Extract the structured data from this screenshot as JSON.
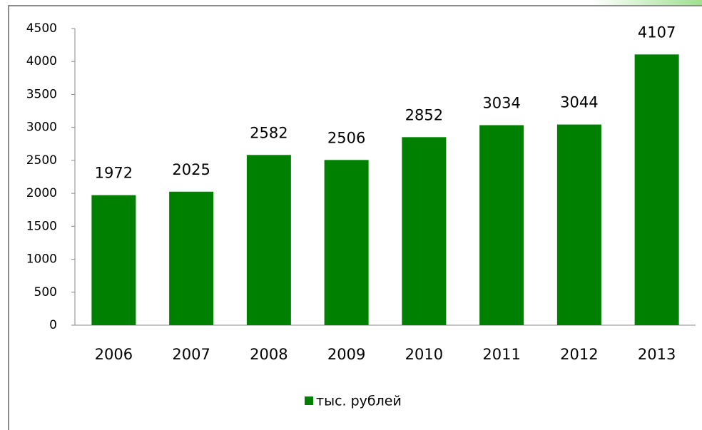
{
  "chart_data": {
    "type": "bar",
    "categories": [
      "2006",
      "2007",
      "2008",
      "2009",
      "2010",
      "2011",
      "2012",
      "2013"
    ],
    "series": [
      {
        "name": "тыс. рублей",
        "color": "#008000",
        "values": [
          1972,
          2025,
          2582,
          2506,
          2852,
          3034,
          3044,
          4107
        ]
      }
    ],
    "ylim": [
      0,
      4500
    ],
    "yticks": [
      0,
      500,
      1000,
      1500,
      2000,
      2500,
      3000,
      3500,
      4000,
      4500
    ],
    "data_labels": true,
    "legend": "bottom"
  }
}
